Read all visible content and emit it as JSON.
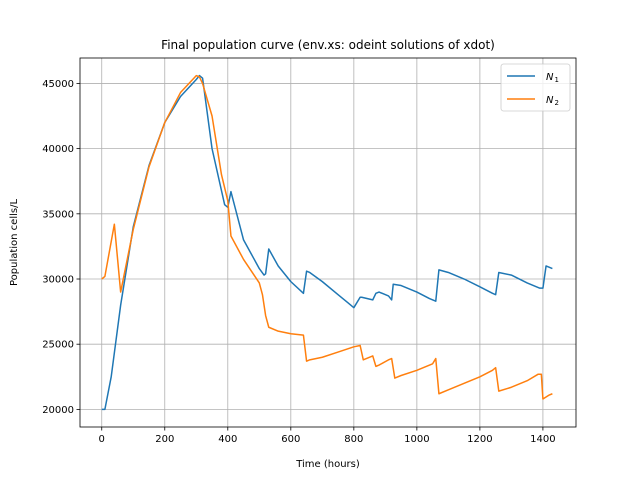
{
  "chart_data": {
    "type": "line",
    "title": "Final population curve (env.xs: odeint solutions of xdot)",
    "xlabel": "Time (hours)",
    "ylabel": "Population cells/L",
    "xlim": [
      -69,
      1505
    ],
    "ylim": [
      18650,
      46950
    ],
    "xticks": [
      0,
      200,
      400,
      600,
      800,
      1000,
      1200,
      1400
    ],
    "yticks": [
      20000,
      25000,
      30000,
      35000,
      40000,
      45000
    ],
    "grid": true,
    "legend_position": "upper right",
    "series": [
      {
        "name": "N",
        "subscript": "1",
        "color": "#1f77b4",
        "x": [
          0,
          10,
          30,
          60,
          100,
          150,
          200,
          250,
          300,
          310,
          320,
          350,
          390,
          400,
          410,
          450,
          500,
          515,
          520,
          530,
          560,
          600,
          640,
          650,
          660,
          700,
          750,
          780,
          800,
          820,
          825,
          860,
          870,
          880,
          910,
          920,
          925,
          950,
          1000,
          1040,
          1060,
          1070,
          1100,
          1150,
          1200,
          1240,
          1250,
          1260,
          1300,
          1350,
          1390,
          1400,
          1410,
          1430
        ],
        "values": [
          20000,
          20000,
          22500,
          28000,
          34000,
          38700,
          42000,
          44000,
          45300,
          45600,
          45400,
          40000,
          35700,
          35500,
          36700,
          33000,
          30800,
          30300,
          30400,
          32300,
          31000,
          29800,
          28900,
          30600,
          30500,
          29800,
          28800,
          28200,
          27800,
          28600,
          28600,
          28400,
          28900,
          29000,
          28700,
          28400,
          29600,
          29500,
          29000,
          28500,
          28300,
          30700,
          30500,
          30000,
          29400,
          28900,
          28800,
          30500,
          30300,
          29700,
          29300,
          29300,
          31000,
          30800
        ]
      },
      {
        "name": "N",
        "subscript": "2",
        "color": "#ff7f0e",
        "x": [
          0,
          10,
          40,
          60,
          100,
          150,
          200,
          250,
          300,
          310,
          320,
          350,
          380,
          400,
          410,
          450,
          500,
          510,
          520,
          530,
          560,
          600,
          640,
          650,
          660,
          700,
          750,
          800,
          820,
          830,
          860,
          870,
          880,
          910,
          920,
          930,
          950,
          1000,
          1050,
          1060,
          1070,
          1100,
          1150,
          1200,
          1240,
          1250,
          1260,
          1300,
          1350,
          1385,
          1395,
          1400,
          1420,
          1430
        ],
        "values": [
          30000,
          30200,
          34200,
          29000,
          33800,
          38600,
          42000,
          44300,
          45600,
          45500,
          45000,
          42500,
          38000,
          36000,
          33300,
          31500,
          29700,
          28800,
          27200,
          26300,
          26000,
          25800,
          25700,
          23700,
          23800,
          24000,
          24400,
          24800,
          24900,
          23800,
          24100,
          23300,
          23400,
          23800,
          23900,
          22400,
          22600,
          23000,
          23500,
          23900,
          21200,
          21500,
          22000,
          22500,
          23000,
          23200,
          21400,
          21700,
          22200,
          22700,
          22700,
          20800,
          21100,
          21200
        ]
      }
    ]
  }
}
